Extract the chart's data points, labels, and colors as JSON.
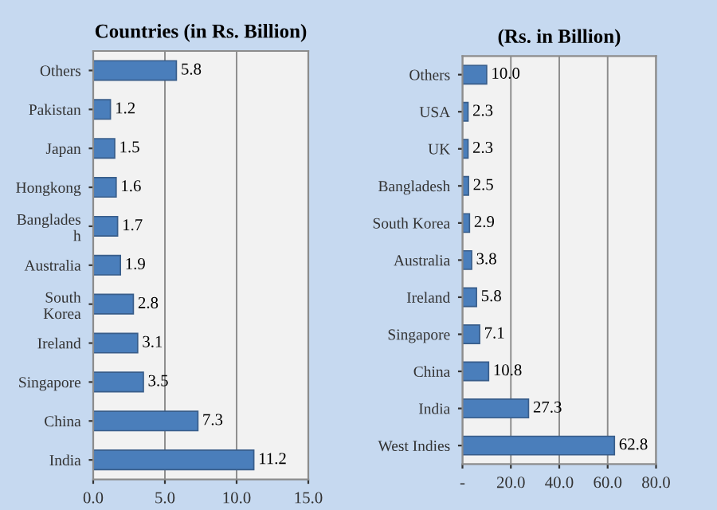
{
  "chart_data": [
    {
      "type": "bar",
      "orientation": "horizontal",
      "title": "Countries (in Rs. Billion)",
      "categories": [
        "Others",
        "Pakistan",
        "Japan",
        "Hongkong",
        "Banglades\nh",
        "Australia",
        "South\nKorea",
        "Ireland",
        "Singapore",
        "China",
        "India"
      ],
      "values": [
        5.8,
        1.2,
        1.5,
        1.6,
        1.7,
        1.9,
        2.8,
        3.1,
        3.5,
        7.3,
        11.2
      ],
      "color": "#4a7ebb",
      "data_labels": true,
      "grid": "x",
      "xlim": [
        0,
        15
      ],
      "xticks": [
        {
          "value": 0,
          "label": "0.0"
        },
        {
          "value": 5,
          "label": "5.0"
        },
        {
          "value": 10,
          "label": "10.0"
        },
        {
          "value": 15,
          "label": "15.0"
        }
      ]
    },
    {
      "type": "bar",
      "orientation": "horizontal",
      "title": "(Rs. in Billion)",
      "categories": [
        "Others",
        "USA",
        "UK",
        "Bangladesh",
        "South Korea",
        "Australia",
        "Ireland",
        "Singapore",
        "China",
        "India",
        "West Indies"
      ],
      "values": [
        10.0,
        2.3,
        2.3,
        2.5,
        2.9,
        3.8,
        5.8,
        7.1,
        10.8,
        27.3,
        62.8
      ],
      "color": "#4a7ebb",
      "grid": "x",
      "value_labels": [
        "10.0",
        "2.3",
        "2.3",
        "2.5",
        "2.9",
        "3.8",
        "5.8",
        "7.1",
        "10.8",
        "27.3",
        "62.8"
      ],
      "xlim": [
        0,
        80
      ],
      "xticks": [
        {
          "value": 0,
          "label": "-"
        },
        {
          "value": 20,
          "label": "20.0"
        },
        {
          "value": 40,
          "label": "40.0"
        },
        {
          "value": 60,
          "label": "60.0"
        },
        {
          "value": 80,
          "label": "80.0"
        }
      ]
    }
  ]
}
